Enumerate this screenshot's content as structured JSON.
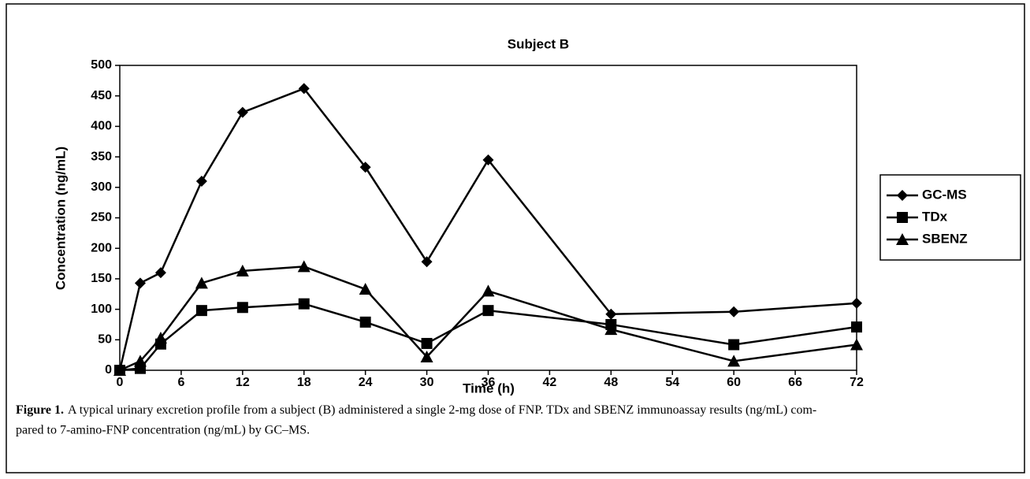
{
  "chart_data": {
    "type": "line",
    "title": "Subject B",
    "x_label": "Time (h)",
    "y_label": "Concentration (ng/mL)",
    "x": [
      0,
      2,
      4,
      8,
      12,
      18,
      24,
      30,
      36,
      48,
      60,
      72
    ],
    "series": [
      {
        "name": "GC-MS",
        "color": "#000000",
        "marker": "diamond",
        "values": [
          0,
          143,
          160,
          310,
          423,
          462,
          333,
          178,
          345,
          92,
          96,
          110
        ]
      },
      {
        "name": "TDx",
        "color": "#000000",
        "marker": "square",
        "values": [
          0,
          3,
          43,
          98,
          103,
          109,
          79,
          44,
          98,
          75,
          42,
          71
        ]
      },
      {
        "name": "SBENZ",
        "color": "#000000",
        "marker": "triangle",
        "values": [
          0,
          15,
          53,
          143,
          163,
          170,
          133,
          22,
          130,
          67,
          15,
          42
        ]
      }
    ],
    "xlim": [
      0,
      72
    ],
    "xticks": [
      0,
      6,
      12,
      18,
      24,
      30,
      36,
      42,
      48,
      54,
      60,
      66,
      72
    ],
    "ylim": [
      0,
      500
    ],
    "yticks": [
      0,
      50,
      100,
      150,
      200,
      250,
      300,
      350,
      400,
      450,
      500
    ],
    "legend": "right",
    "caption": {
      "label": "Figure 1.",
      "lines": [
        "A typical urinary excretion profile from a subject (B) administered a single 2-mg dose of FNP. TDx and SBENZ immunoassay results (ng/mL) com-",
        "pared to 7-amino-FNP concentration (ng/mL) by GC–MS."
      ]
    }
  }
}
